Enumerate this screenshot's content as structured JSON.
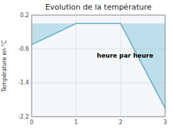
{
  "chart_data": {
    "type": "area",
    "title": "Evolution de la température",
    "x_label": "heure par heure",
    "y_label": "Température en °C",
    "x": [
      0,
      1,
      2,
      3
    ],
    "values": [
      -0.5,
      0.0,
      0.0,
      -2.0
    ],
    "color": "#5aaec8",
    "xlim": [
      0,
      3
    ],
    "ylim": [
      -2.2,
      0.2
    ],
    "xticks": [
      0,
      1,
      2,
      3
    ],
    "yticks": [
      0.2,
      -0.6,
      -1.4,
      -2.2
    ],
    "grid": true
  }
}
